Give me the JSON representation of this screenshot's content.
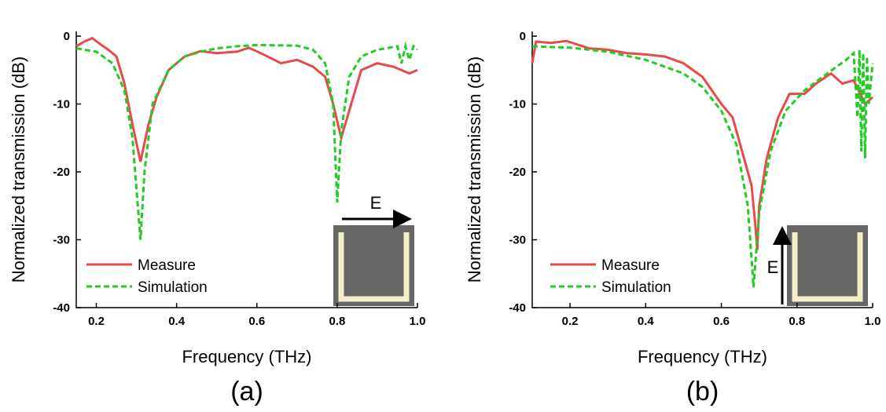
{
  "chart_data": [
    {
      "type": "line",
      "panel_label": "(a)",
      "xlabel": "Frequency (THz)",
      "ylabel": "Normalized transmission (dB)",
      "xlim": [
        0.15,
        1.0
      ],
      "ylim": [
        -40,
        0.7
      ],
      "xticks": [
        0.2,
        0.4,
        0.6,
        0.8,
        {
          "value": 1.0,
          "label": "1.0"
        }
      ],
      "yticks": [
        0,
        -10,
        -20,
        -30,
        -40
      ],
      "annotation": "E",
      "legend": "lower left",
      "series": [
        {
          "name": "Measure",
          "color": "#e84a4a",
          "style": "solid",
          "x": [
            0.15,
            0.17,
            0.19,
            0.21,
            0.23,
            0.25,
            0.27,
            0.29,
            0.31,
            0.33,
            0.35,
            0.38,
            0.42,
            0.46,
            0.5,
            0.55,
            0.58,
            0.62,
            0.66,
            0.7,
            0.74,
            0.77,
            0.79,
            0.81,
            0.83,
            0.86,
            0.9,
            0.94,
            0.98,
            1.0
          ],
          "values": [
            -1.5,
            -0.8,
            -0.3,
            -1.2,
            -2,
            -3,
            -7,
            -13,
            -18.5,
            -13,
            -9,
            -5,
            -3,
            -2.2,
            -2.5,
            -2.3,
            -1.7,
            -2.8,
            -4,
            -3.5,
            -4.5,
            -6,
            -10,
            -15,
            -11,
            -5,
            -4,
            -4.5,
            -5.5,
            -5
          ]
        },
        {
          "name": "Simulation",
          "color": "#22cc22",
          "style": "dashed",
          "x": [
            0.15,
            0.2,
            0.24,
            0.27,
            0.29,
            0.31,
            0.32,
            0.34,
            0.38,
            0.42,
            0.46,
            0.5,
            0.55,
            0.6,
            0.7,
            0.74,
            0.77,
            0.79,
            0.8,
            0.81,
            0.83,
            0.86,
            0.9,
            0.95,
            0.96,
            0.97,
            0.98,
            0.99,
            1.0
          ],
          "values": [
            -1.8,
            -2.3,
            -4,
            -8,
            -15,
            -30,
            -20,
            -10,
            -5,
            -3,
            -2.3,
            -1.8,
            -1.5,
            -1.3,
            -1.4,
            -2,
            -4,
            -10,
            -24.5,
            -14,
            -6,
            -3,
            -2,
            -1.5,
            -4,
            -1.5,
            -3.5,
            -1.5,
            -2
          ]
        }
      ]
    },
    {
      "type": "line",
      "panel_label": "(b)",
      "xlabel": "Frequency (THz)",
      "ylabel": "Normalized transmission (dB)",
      "xlim": [
        0.1,
        1.0
      ],
      "ylim": [
        -40,
        0.7
      ],
      "xticks": [
        0.2,
        0.4,
        0.6,
        0.8,
        {
          "value": 1.0,
          "label": "1.0"
        }
      ],
      "yticks": [
        0,
        -10,
        -20,
        -30,
        -40
      ],
      "annotation": "E",
      "legend": "lower left",
      "series": [
        {
          "name": "Measure",
          "color": "#e84a4a",
          "style": "solid",
          "x": [
            0.1,
            0.11,
            0.15,
            0.19,
            0.25,
            0.3,
            0.35,
            0.4,
            0.45,
            0.5,
            0.55,
            0.6,
            0.63,
            0.66,
            0.68,
            0.69,
            0.695,
            0.7,
            0.72,
            0.75,
            0.78,
            0.82,
            0.85,
            0.89,
            0.92,
            0.95,
            0.98,
            1.0
          ],
          "values": [
            -4,
            -0.8,
            -1,
            -0.7,
            -1.8,
            -2,
            -2.5,
            -2.7,
            -3,
            -4,
            -6,
            -10,
            -12,
            -18,
            -22,
            -28,
            -31.5,
            -25,
            -18,
            -12,
            -8.5,
            -8.5,
            -7,
            -5.5,
            -7,
            -6.5,
            -10,
            -9
          ]
        },
        {
          "name": "Simulation",
          "color": "#22cc22",
          "style": "dashed",
          "x": [
            0.1,
            0.2,
            0.3,
            0.4,
            0.5,
            0.55,
            0.6,
            0.64,
            0.67,
            0.685,
            0.7,
            0.73,
            0.77,
            0.82,
            0.88,
            0.93,
            0.95,
            0.96,
            0.965,
            0.97,
            0.975,
            0.98,
            0.985,
            0.99,
            1.0
          ],
          "values": [
            -1.5,
            -1.7,
            -2.3,
            -3.5,
            -5.5,
            -7.5,
            -11,
            -16,
            -25,
            -37,
            -26,
            -17,
            -11,
            -8,
            -5.5,
            -3.5,
            -2.5,
            -12,
            -2,
            -17,
            -2.5,
            -18,
            -3,
            -10,
            -4
          ]
        }
      ]
    }
  ]
}
